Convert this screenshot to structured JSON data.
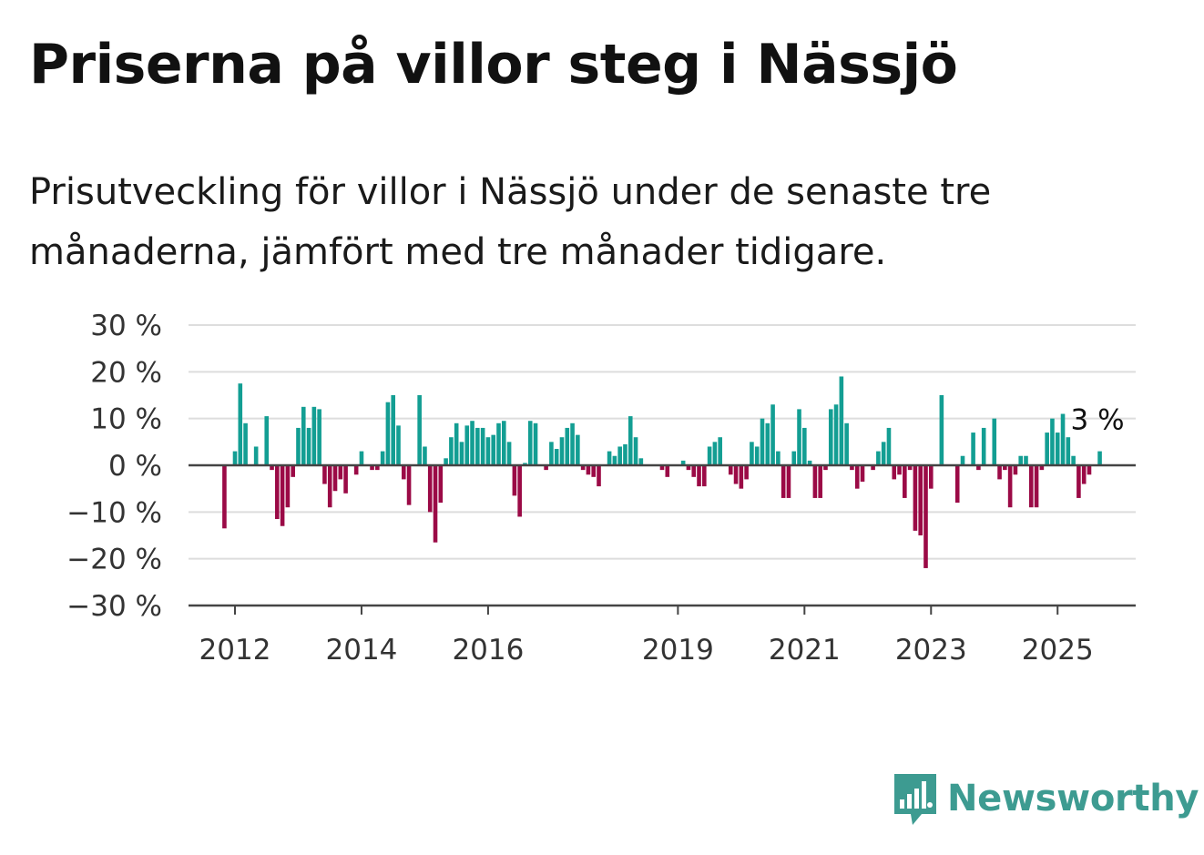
{
  "title": "Priserna på villor steg i Nässjö",
  "subtitle": "Prisutveckling för villor i Nässjö under de senaste tre månaderna, jämfört med tre månader tidigare.",
  "brand": {
    "name": "Newsworthy",
    "icon": "bar-chart-speech-bubble-icon",
    "color": "#3d9b91"
  },
  "chart_data": {
    "type": "bar",
    "ylim": [
      -30,
      30
    ],
    "y_ticks": [
      30,
      20,
      10,
      0,
      -10,
      -20,
      -30
    ],
    "y_tick_labels": [
      "30 %",
      "20 %",
      "10 %",
      "0 %",
      "−10 %",
      "−20 %",
      "−30 %"
    ],
    "x_start": "2011-11",
    "x_ticks": [
      "2012",
      "2014",
      "2016",
      "2019",
      "2021",
      "2023",
      "2025"
    ],
    "colors": {
      "positive": "#139e93",
      "negative": "#9b0a46"
    },
    "grid": true,
    "annotation": {
      "label": "3 %",
      "value": 3
    },
    "values": [
      -13.5,
      null,
      3,
      17.5,
      9,
      null,
      4,
      null,
      10.5,
      -1,
      -11.5,
      -13,
      -9,
      -2.5,
      8,
      12.5,
      8,
      12.5,
      12,
      -4,
      -9,
      -5.5,
      -3,
      -6,
      null,
      -2,
      3,
      null,
      -1,
      -1,
      3,
      13.5,
      15,
      8.5,
      -3,
      -8.5,
      null,
      15,
      4,
      -10,
      -16.5,
      -8,
      1.5,
      6,
      9,
      5,
      8.5,
      9.5,
      8,
      8,
      6,
      6.5,
      9,
      9.5,
      5,
      -6.5,
      -11,
      0.5,
      9.5,
      9,
      null,
      -1,
      5,
      3.5,
      6,
      8,
      9,
      6.5,
      -1,
      -2,
      -2.5,
      -4.5,
      null,
      3,
      2,
      4,
      4.5,
      10.5,
      6,
      1.5,
      null,
      null,
      null,
      -1,
      -2.5,
      null,
      null,
      1,
      -1,
      -2.5,
      -4.5,
      -4.5,
      4,
      5,
      6,
      null,
      -2,
      -4,
      -5,
      -3,
      5,
      4,
      10,
      9,
      13,
      3,
      -7,
      -7,
      3,
      12,
      8,
      1,
      -7,
      -7,
      -1,
      12,
      13,
      19,
      9,
      -1,
      -5,
      -3.5,
      null,
      -1,
      3,
      5,
      8,
      -3,
      -2,
      -7,
      -1,
      -14,
      -15,
      -22,
      -5,
      null,
      15,
      null,
      null,
      -8,
      2,
      null,
      7,
      -1,
      8,
      null,
      10,
      -3,
      -1,
      -9,
      -2,
      2,
      2,
      -9,
      -9,
      -1,
      7,
      10,
      7,
      11,
      6,
      2,
      -7,
      -4,
      -2,
      null,
      3
    ]
  }
}
